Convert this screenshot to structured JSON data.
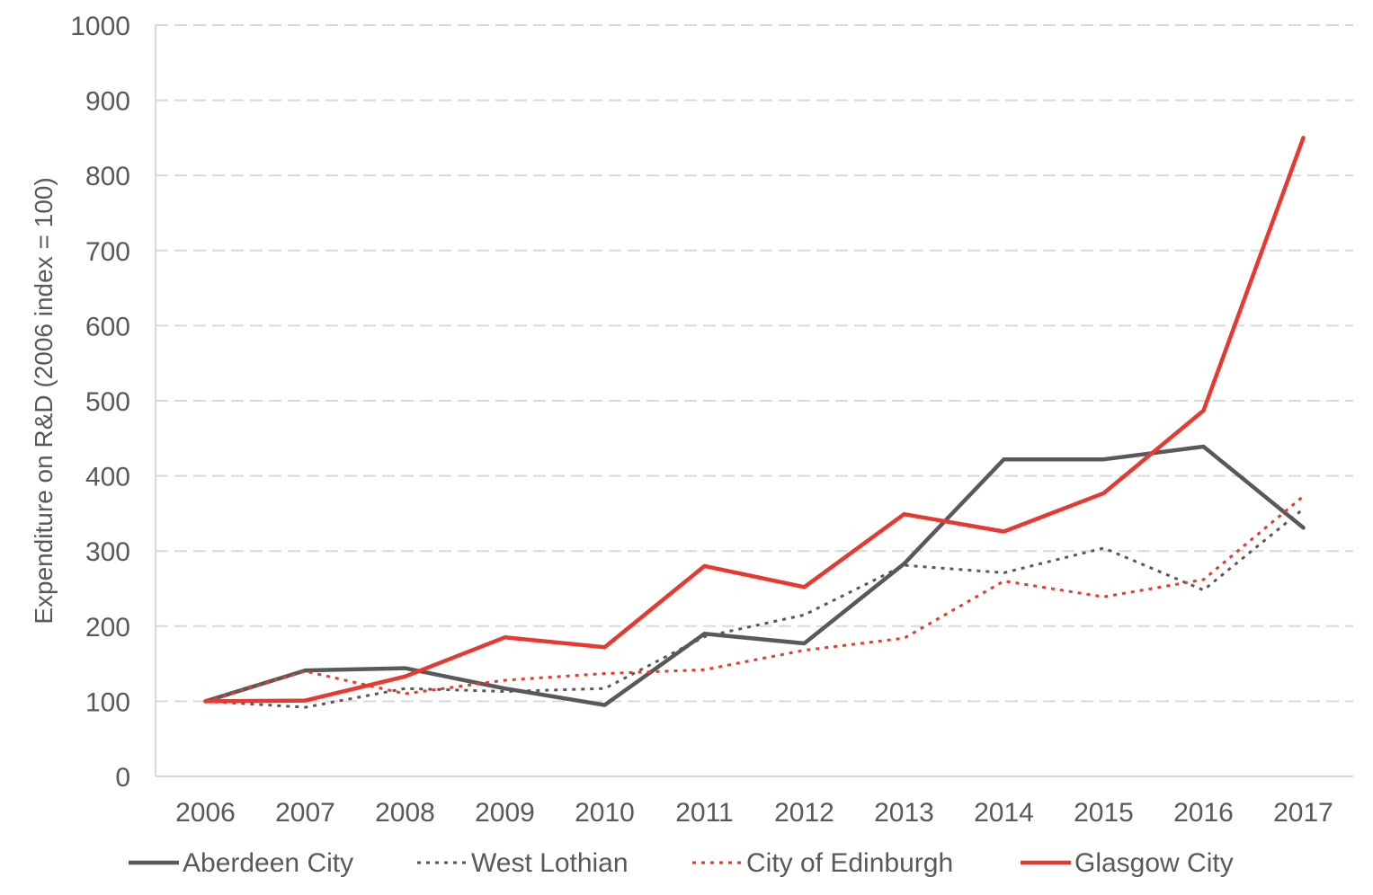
{
  "chart_data": {
    "type": "line",
    "title": "",
    "xlabel": "",
    "ylabel": "Expenditure on R&D (2006 index  = 100)",
    "categories": [
      "2006",
      "2007",
      "2008",
      "2009",
      "2010",
      "2011",
      "2012",
      "2013",
      "2014",
      "2015",
      "2016",
      "2017"
    ],
    "ylim": [
      0,
      1000
    ],
    "yticks": [
      0,
      100,
      200,
      300,
      400,
      500,
      600,
      700,
      800,
      900,
      1000
    ],
    "grid": "horizontal-dashed",
    "legend_position": "bottom",
    "series": [
      {
        "name": "Aberdeen City",
        "color": "#595959",
        "style": "solid",
        "values": [
          100,
          141,
          144,
          117,
          95,
          190,
          177,
          283,
          422,
          422,
          439,
          331
        ]
      },
      {
        "name": "West Lothian",
        "color": "#595959",
        "style": "dotted",
        "values": [
          100,
          92,
          117,
          113,
          117,
          186,
          215,
          281,
          271,
          304,
          248,
          356
        ]
      },
      {
        "name": "City of Edinburgh",
        "color": "#e8382f",
        "style": "dotted",
        "values": [
          100,
          140,
          110,
          128,
          137,
          142,
          168,
          184,
          260,
          239,
          262,
          373
        ]
      },
      {
        "name": "Glasgow City",
        "color": "#e8382f",
        "style": "solid",
        "values": [
          100,
          101,
          133,
          185,
          172,
          280,
          252,
          349,
          326,
          377,
          487,
          850
        ]
      }
    ]
  }
}
